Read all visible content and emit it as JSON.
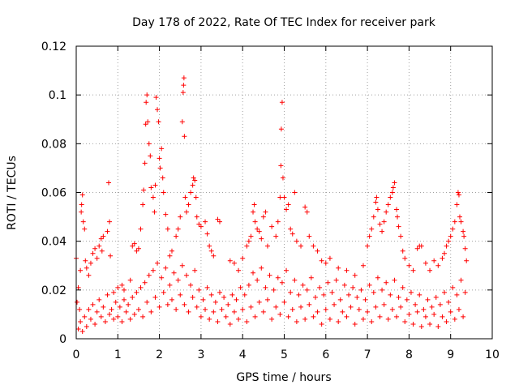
{
  "chart_data": {
    "type": "scatter",
    "title": "Day 178 of 2022, Rate Of TEC Index for receiver park",
    "xlabel": "GPS time / hours",
    "ylabel": "ROTI / TECUs",
    "xlim": [
      0,
      10
    ],
    "ylim": [
      0,
      0.12
    ],
    "grid": true,
    "marker": "+",
    "colors": {
      "points": "#ff0000",
      "grid": "#a0a0a0",
      "axis": "#000000"
    },
    "x_ticks": [
      {
        "value": 0,
        "label": "0"
      },
      {
        "value": 1,
        "label": "1"
      },
      {
        "value": 2,
        "label": "2"
      },
      {
        "value": 3,
        "label": "3"
      },
      {
        "value": 4,
        "label": "4"
      },
      {
        "value": 5,
        "label": "5"
      },
      {
        "value": 6,
        "label": "6"
      },
      {
        "value": 7,
        "label": "7"
      },
      {
        "value": 8,
        "label": "8"
      },
      {
        "value": 9,
        "label": "9"
      },
      {
        "value": 10,
        "label": "10"
      }
    ],
    "y_ticks": [
      {
        "value": 0,
        "label": "0"
      },
      {
        "value": 0.02,
        "label": "0.02"
      },
      {
        "value": 0.04,
        "label": "0.04"
      },
      {
        "value": 0.06,
        "label": "0.06"
      },
      {
        "value": 0.08,
        "label": "0.08"
      },
      {
        "value": 0.1,
        "label": "0.1"
      },
      {
        "value": 0.12,
        "label": "0.12"
      }
    ],
    "points": [
      [
        0.0,
        0.033
      ],
      [
        0.02,
        0.015
      ],
      [
        0.05,
        0.021
      ],
      [
        0.08,
        0.012
      ],
      [
        0.1,
        0.028
      ],
      [
        0.12,
        0.052
      ],
      [
        0.13,
        0.055
      ],
      [
        0.15,
        0.059
      ],
      [
        0.17,
        0.048
      ],
      [
        0.2,
        0.045
      ],
      [
        0.22,
        0.032
      ],
      [
        0.25,
        0.029
      ],
      [
        0.3,
        0.026
      ],
      [
        0.35,
        0.031
      ],
      [
        0.4,
        0.035
      ],
      [
        0.45,
        0.037
      ],
      [
        0.5,
        0.033
      ],
      [
        0.55,
        0.038
      ],
      [
        0.6,
        0.041
      ],
      [
        0.62,
        0.036
      ],
      [
        0.65,
        0.042
      ],
      [
        0.75,
        0.044
      ],
      [
        0.78,
        0.064
      ],
      [
        0.8,
        0.048
      ],
      [
        0.82,
        0.034
      ],
      [
        0.9,
        0.019
      ],
      [
        1.0,
        0.021
      ],
      [
        1.1,
        0.022
      ],
      [
        1.15,
        0.02
      ],
      [
        1.3,
        0.024
      ],
      [
        1.35,
        0.038
      ],
      [
        1.4,
        0.039
      ],
      [
        1.45,
        0.036
      ],
      [
        1.5,
        0.037
      ],
      [
        1.55,
        0.045
      ],
      [
        1.6,
        0.055
      ],
      [
        1.62,
        0.061
      ],
      [
        1.65,
        0.072
      ],
      [
        1.67,
        0.088
      ],
      [
        1.68,
        0.097
      ],
      [
        1.7,
        0.1
      ],
      [
        1.72,
        0.089
      ],
      [
        1.75,
        0.08
      ],
      [
        1.78,
        0.075
      ],
      [
        1.8,
        0.062
      ],
      [
        1.85,
        0.058
      ],
      [
        1.88,
        0.052
      ],
      [
        1.9,
        0.063
      ],
      [
        1.92,
        0.099
      ],
      [
        1.95,
        0.094
      ],
      [
        1.98,
        0.089
      ],
      [
        2.0,
        0.074
      ],
      [
        2.02,
        0.07
      ],
      [
        2.05,
        0.078
      ],
      [
        2.08,
        0.066
      ],
      [
        2.1,
        0.06
      ],
      [
        2.15,
        0.051
      ],
      [
        2.2,
        0.045
      ],
      [
        2.25,
        0.034
      ],
      [
        2.3,
        0.036
      ],
      [
        2.4,
        0.042
      ],
      [
        2.45,
        0.045
      ],
      [
        2.5,
        0.05
      ],
      [
        2.55,
        0.089
      ],
      [
        2.57,
        0.101
      ],
      [
        2.58,
        0.104
      ],
      [
        2.59,
        0.107
      ],
      [
        2.6,
        0.083
      ],
      [
        2.62,
        0.058
      ],
      [
        2.65,
        0.052
      ],
      [
        2.7,
        0.055
      ],
      [
        2.75,
        0.06
      ],
      [
        2.8,
        0.063
      ],
      [
        2.82,
        0.066
      ],
      [
        2.85,
        0.065
      ],
      [
        2.88,
        0.058
      ],
      [
        2.9,
        0.05
      ],
      [
        2.95,
        0.047
      ],
      [
        3.0,
        0.046
      ],
      [
        3.1,
        0.048
      ],
      [
        3.15,
        0.043
      ],
      [
        3.2,
        0.038
      ],
      [
        3.25,
        0.036
      ],
      [
        3.3,
        0.034
      ],
      [
        3.4,
        0.049
      ],
      [
        3.45,
        0.048
      ],
      [
        3.7,
        0.032
      ],
      [
        3.8,
        0.031
      ],
      [
        3.9,
        0.028
      ],
      [
        4.0,
        0.033
      ],
      [
        4.1,
        0.038
      ],
      [
        4.15,
        0.04
      ],
      [
        4.2,
        0.042
      ],
      [
        4.25,
        0.052
      ],
      [
        4.28,
        0.055
      ],
      [
        4.3,
        0.048
      ],
      [
        4.35,
        0.045
      ],
      [
        4.4,
        0.044
      ],
      [
        4.45,
        0.041
      ],
      [
        4.5,
        0.05
      ],
      [
        4.55,
        0.052
      ],
      [
        4.6,
        0.038
      ],
      [
        4.7,
        0.046
      ],
      [
        4.8,
        0.042
      ],
      [
        4.85,
        0.048
      ],
      [
        4.9,
        0.058
      ],
      [
        4.92,
        0.071
      ],
      [
        4.93,
        0.086
      ],
      [
        4.95,
        0.097
      ],
      [
        4.97,
        0.066
      ],
      [
        5.0,
        0.058
      ],
      [
        5.05,
        0.053
      ],
      [
        5.1,
        0.055
      ],
      [
        5.15,
        0.045
      ],
      [
        5.2,
        0.043
      ],
      [
        5.25,
        0.06
      ],
      [
        5.3,
        0.04
      ],
      [
        5.4,
        0.038
      ],
      [
        5.5,
        0.054
      ],
      [
        5.55,
        0.052
      ],
      [
        5.6,
        0.042
      ],
      [
        5.7,
        0.038
      ],
      [
        5.8,
        0.036
      ],
      [
        5.9,
        0.032
      ],
      [
        6.0,
        0.031
      ],
      [
        6.1,
        0.033
      ],
      [
        6.3,
        0.029
      ],
      [
        6.5,
        0.028
      ],
      [
        6.7,
        0.026
      ],
      [
        6.9,
        0.03
      ],
      [
        7.0,
        0.038
      ],
      [
        7.05,
        0.042
      ],
      [
        7.1,
        0.045
      ],
      [
        7.15,
        0.05
      ],
      [
        7.2,
        0.056
      ],
      [
        7.22,
        0.058
      ],
      [
        7.25,
        0.053
      ],
      [
        7.3,
        0.047
      ],
      [
        7.35,
        0.044
      ],
      [
        7.4,
        0.048
      ],
      [
        7.45,
        0.052
      ],
      [
        7.5,
        0.055
      ],
      [
        7.55,
        0.058
      ],
      [
        7.6,
        0.06
      ],
      [
        7.62,
        0.062
      ],
      [
        7.65,
        0.064
      ],
      [
        7.7,
        0.053
      ],
      [
        7.72,
        0.05
      ],
      [
        7.75,
        0.046
      ],
      [
        7.8,
        0.042
      ],
      [
        7.85,
        0.036
      ],
      [
        7.9,
        0.033
      ],
      [
        8.0,
        0.03
      ],
      [
        8.1,
        0.028
      ],
      [
        8.2,
        0.037
      ],
      [
        8.25,
        0.038
      ],
      [
        8.3,
        0.038
      ],
      [
        8.4,
        0.031
      ],
      [
        8.5,
        0.028
      ],
      [
        8.6,
        0.032
      ],
      [
        8.7,
        0.03
      ],
      [
        8.8,
        0.033
      ],
      [
        8.85,
        0.035
      ],
      [
        8.9,
        0.038
      ],
      [
        8.95,
        0.04
      ],
      [
        9.0,
        0.042
      ],
      [
        9.05,
        0.045
      ],
      [
        9.1,
        0.048
      ],
      [
        9.15,
        0.055
      ],
      [
        9.18,
        0.06
      ],
      [
        9.2,
        0.059
      ],
      [
        9.22,
        0.05
      ],
      [
        9.25,
        0.048
      ],
      [
        9.3,
        0.044
      ],
      [
        9.32,
        0.042
      ],
      [
        9.35,
        0.037
      ],
      [
        9.38,
        0.032
      ],
      [
        0.05,
        0.004
      ],
      [
        0.1,
        0.007
      ],
      [
        0.15,
        0.003
      ],
      [
        0.2,
        0.009
      ],
      [
        0.25,
        0.005
      ],
      [
        0.3,
        0.012
      ],
      [
        0.35,
        0.008
      ],
      [
        0.4,
        0.014
      ],
      [
        0.45,
        0.006
      ],
      [
        0.5,
        0.011
      ],
      [
        0.55,
        0.016
      ],
      [
        0.6,
        0.009
      ],
      [
        0.65,
        0.013
      ],
      [
        0.7,
        0.007
      ],
      [
        0.75,
        0.018
      ],
      [
        0.8,
        0.01
      ],
      [
        0.85,
        0.012
      ],
      [
        0.9,
        0.008
      ],
      [
        0.95,
        0.015
      ],
      [
        1.0,
        0.009
      ],
      [
        1.05,
        0.013
      ],
      [
        1.1,
        0.007
      ],
      [
        1.15,
        0.016
      ],
      [
        1.2,
        0.011
      ],
      [
        1.25,
        0.014
      ],
      [
        1.3,
        0.008
      ],
      [
        1.35,
        0.017
      ],
      [
        1.4,
        0.01
      ],
      [
        1.45,
        0.019
      ],
      [
        1.5,
        0.012
      ],
      [
        1.55,
        0.021
      ],
      [
        1.6,
        0.009
      ],
      [
        1.65,
        0.023
      ],
      [
        1.7,
        0.015
      ],
      [
        1.75,
        0.026
      ],
      [
        1.8,
        0.011
      ],
      [
        1.85,
        0.028
      ],
      [
        1.9,
        0.017
      ],
      [
        1.95,
        0.031
      ],
      [
        2.0,
        0.013
      ],
      [
        2.05,
        0.025
      ],
      [
        2.1,
        0.019
      ],
      [
        2.15,
        0.029
      ],
      [
        2.2,
        0.014
      ],
      [
        2.25,
        0.022
      ],
      [
        2.3,
        0.016
      ],
      [
        2.35,
        0.027
      ],
      [
        2.4,
        0.012
      ],
      [
        2.45,
        0.024
      ],
      [
        2.5,
        0.018
      ],
      [
        2.55,
        0.03
      ],
      [
        2.6,
        0.014
      ],
      [
        2.65,
        0.026
      ],
      [
        2.7,
        0.011
      ],
      [
        2.75,
        0.022
      ],
      [
        2.8,
        0.017
      ],
      [
        2.85,
        0.028
      ],
      [
        2.9,
        0.013
      ],
      [
        2.95,
        0.02
      ],
      [
        3.0,
        0.009
      ],
      [
        3.05,
        0.016
      ],
      [
        3.1,
        0.012
      ],
      [
        3.15,
        0.021
      ],
      [
        3.2,
        0.008
      ],
      [
        3.25,
        0.018
      ],
      [
        3.3,
        0.011
      ],
      [
        3.35,
        0.015
      ],
      [
        3.4,
        0.007
      ],
      [
        3.45,
        0.019
      ],
      [
        3.5,
        0.012
      ],
      [
        3.55,
        0.017
      ],
      [
        3.6,
        0.009
      ],
      [
        3.65,
        0.014
      ],
      [
        3.7,
        0.006
      ],
      [
        3.75,
        0.018
      ],
      [
        3.8,
        0.011
      ],
      [
        3.85,
        0.016
      ],
      [
        3.9,
        0.008
      ],
      [
        3.95,
        0.021
      ],
      [
        4.0,
        0.012
      ],
      [
        4.05,
        0.018
      ],
      [
        4.1,
        0.007
      ],
      [
        4.15,
        0.022
      ],
      [
        4.2,
        0.013
      ],
      [
        4.25,
        0.027
      ],
      [
        4.3,
        0.009
      ],
      [
        4.35,
        0.024
      ],
      [
        4.4,
        0.015
      ],
      [
        4.45,
        0.029
      ],
      [
        4.5,
        0.011
      ],
      [
        4.55,
        0.021
      ],
      [
        4.6,
        0.016
      ],
      [
        4.65,
        0.026
      ],
      [
        4.7,
        0.008
      ],
      [
        4.75,
        0.02
      ],
      [
        4.8,
        0.013
      ],
      [
        4.85,
        0.025
      ],
      [
        4.9,
        0.01
      ],
      [
        4.95,
        0.023
      ],
      [
        5.0,
        0.015
      ],
      [
        5.05,
        0.028
      ],
      [
        5.1,
        0.009
      ],
      [
        5.15,
        0.019
      ],
      [
        5.2,
        0.012
      ],
      [
        5.25,
        0.024
      ],
      [
        5.3,
        0.007
      ],
      [
        5.35,
        0.018
      ],
      [
        5.4,
        0.013
      ],
      [
        5.45,
        0.022
      ],
      [
        5.5,
        0.008
      ],
      [
        5.55,
        0.02
      ],
      [
        5.6,
        0.014
      ],
      [
        5.65,
        0.025
      ],
      [
        5.7,
        0.009
      ],
      [
        5.75,
        0.017
      ],
      [
        5.8,
        0.011
      ],
      [
        5.85,
        0.021
      ],
      [
        5.9,
        0.006
      ],
      [
        5.95,
        0.018
      ],
      [
        6.0,
        0.012
      ],
      [
        6.05,
        0.023
      ],
      [
        6.1,
        0.008
      ],
      [
        6.15,
        0.019
      ],
      [
        6.2,
        0.014
      ],
      [
        6.25,
        0.024
      ],
      [
        6.3,
        0.007
      ],
      [
        6.35,
        0.016
      ],
      [
        6.4,
        0.011
      ],
      [
        6.45,
        0.022
      ],
      [
        6.5,
        0.009
      ],
      [
        6.55,
        0.018
      ],
      [
        6.6,
        0.013
      ],
      [
        6.65,
        0.021
      ],
      [
        6.7,
        0.006
      ],
      [
        6.75,
        0.017
      ],
      [
        6.8,
        0.012
      ],
      [
        6.85,
        0.02
      ],
      [
        6.9,
        0.008
      ],
      [
        6.95,
        0.016
      ],
      [
        7.0,
        0.011
      ],
      [
        7.05,
        0.022
      ],
      [
        7.1,
        0.007
      ],
      [
        7.15,
        0.019
      ],
      [
        7.2,
        0.013
      ],
      [
        7.25,
        0.025
      ],
      [
        7.3,
        0.009
      ],
      [
        7.35,
        0.02
      ],
      [
        7.4,
        0.014
      ],
      [
        7.45,
        0.023
      ],
      [
        7.5,
        0.008
      ],
      [
        7.55,
        0.018
      ],
      [
        7.6,
        0.012
      ],
      [
        7.65,
        0.024
      ],
      [
        7.7,
        0.009
      ],
      [
        7.75,
        0.017
      ],
      [
        7.8,
        0.013
      ],
      [
        7.85,
        0.021
      ],
      [
        7.9,
        0.007
      ],
      [
        7.95,
        0.016
      ],
      [
        8.0,
        0.01
      ],
      [
        8.05,
        0.019
      ],
      [
        8.1,
        0.006
      ],
      [
        8.15,
        0.014
      ],
      [
        8.2,
        0.011
      ],
      [
        8.25,
        0.018
      ],
      [
        8.3,
        0.005
      ],
      [
        8.35,
        0.012
      ],
      [
        8.4,
        0.009
      ],
      [
        8.45,
        0.016
      ],
      [
        8.5,
        0.006
      ],
      [
        8.55,
        0.013
      ],
      [
        8.6,
        0.01
      ],
      [
        8.65,
        0.017
      ],
      [
        8.7,
        0.005
      ],
      [
        8.75,
        0.014
      ],
      [
        8.8,
        0.009
      ],
      [
        8.85,
        0.019
      ],
      [
        8.9,
        0.007
      ],
      [
        8.95,
        0.015
      ],
      [
        9.0,
        0.011
      ],
      [
        9.05,
        0.021
      ],
      [
        9.1,
        0.008
      ],
      [
        9.15,
        0.018
      ],
      [
        9.2,
        0.012
      ],
      [
        9.25,
        0.024
      ],
      [
        9.3,
        0.009
      ],
      [
        9.35,
        0.019
      ]
    ]
  }
}
